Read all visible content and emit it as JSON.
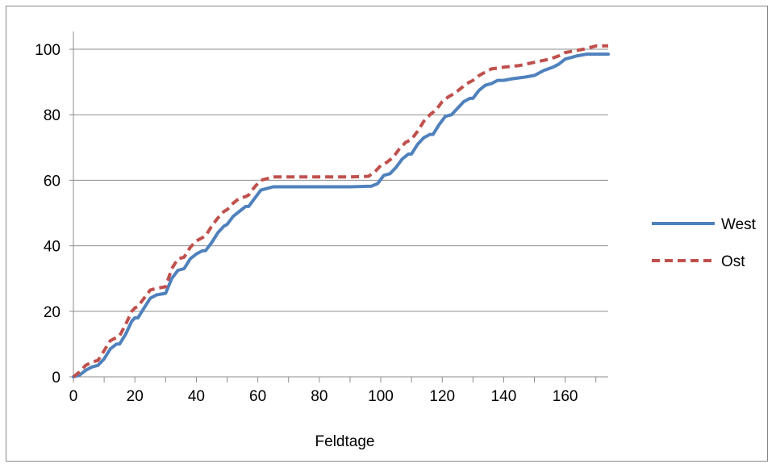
{
  "chart_data": {
    "type": "line",
    "title": "",
    "xlabel": "Feldtage",
    "ylabel": "",
    "xlim": [
      0,
      174
    ],
    "ylim": [
      0,
      100
    ],
    "xticks": [
      0,
      20,
      40,
      60,
      80,
      100,
      120,
      140,
      160
    ],
    "yticks": [
      0,
      20,
      40,
      60,
      80,
      100
    ],
    "grid": "horizontal",
    "legend_position": "right",
    "series": [
      {
        "name": "West",
        "color": "#4f81bd",
        "style": "solid",
        "points": [
          [
            0,
            0
          ],
          [
            2,
            0.5
          ],
          [
            4,
            2
          ],
          [
            6,
            3
          ],
          [
            8,
            3.5
          ],
          [
            10,
            5.5
          ],
          [
            12,
            8.5
          ],
          [
            14,
            10
          ],
          [
            15,
            10
          ],
          [
            17,
            13
          ],
          [
            19,
            17
          ],
          [
            20,
            18
          ],
          [
            21,
            18
          ],
          [
            23,
            21
          ],
          [
            25,
            24
          ],
          [
            27,
            25
          ],
          [
            30,
            25.5
          ],
          [
            32,
            30
          ],
          [
            34,
            32.5
          ],
          [
            36,
            33
          ],
          [
            38,
            36
          ],
          [
            40,
            37.5
          ],
          [
            42,
            38.5
          ],
          [
            43,
            38.5
          ],
          [
            45,
            41
          ],
          [
            47,
            44
          ],
          [
            49,
            46
          ],
          [
            50,
            46.5
          ],
          [
            52,
            49
          ],
          [
            54,
            50.5
          ],
          [
            56,
            52
          ],
          [
            57,
            52
          ],
          [
            59,
            54.5
          ],
          [
            61,
            57
          ],
          [
            63,
            57.5
          ],
          [
            65,
            58
          ],
          [
            70,
            58
          ],
          [
            80,
            58
          ],
          [
            90,
            58
          ],
          [
            97,
            58.2
          ],
          [
            99,
            59
          ],
          [
            101,
            61.5
          ],
          [
            103,
            62
          ],
          [
            105,
            64
          ],
          [
            107,
            66.5
          ],
          [
            109,
            68
          ],
          [
            110,
            68
          ],
          [
            112,
            71
          ],
          [
            114,
            73
          ],
          [
            116,
            74
          ],
          [
            117,
            74
          ],
          [
            119,
            77
          ],
          [
            121,
            79.5
          ],
          [
            123,
            80
          ],
          [
            125,
            82
          ],
          [
            127,
            84
          ],
          [
            129,
            85
          ],
          [
            130,
            85
          ],
          [
            132,
            87.5
          ],
          [
            134,
            89
          ],
          [
            136,
            89.5
          ],
          [
            138,
            90.5
          ],
          [
            140,
            90.5
          ],
          [
            143,
            91
          ],
          [
            147,
            91.5
          ],
          [
            150,
            92
          ],
          [
            153,
            93.5
          ],
          [
            156,
            94.5
          ],
          [
            158,
            95.5
          ],
          [
            160,
            97
          ],
          [
            162,
            97.5
          ],
          [
            164,
            98
          ],
          [
            167,
            98.5
          ],
          [
            170,
            98.5
          ],
          [
            174,
            98.5
          ]
        ]
      },
      {
        "name": "Ost",
        "color": "#c0504d",
        "style": "dashed",
        "points": [
          [
            0,
            0
          ],
          [
            2,
            1.5
          ],
          [
            4,
            3.5
          ],
          [
            6,
            4.5
          ],
          [
            8,
            5
          ],
          [
            10,
            8
          ],
          [
            12,
            11
          ],
          [
            14,
            12
          ],
          [
            15,
            12.5
          ],
          [
            17,
            16
          ],
          [
            19,
            20
          ],
          [
            20,
            21
          ],
          [
            21,
            21.5
          ],
          [
            23,
            24
          ],
          [
            25,
            26.5
          ],
          [
            27,
            27
          ],
          [
            30,
            27.5
          ],
          [
            32,
            33
          ],
          [
            34,
            36
          ],
          [
            36,
            36.5
          ],
          [
            38,
            39.5
          ],
          [
            40,
            41.5
          ],
          [
            42,
            42.5
          ],
          [
            43,
            43
          ],
          [
            45,
            46
          ],
          [
            47,
            48.5
          ],
          [
            49,
            50.5
          ],
          [
            50,
            51
          ],
          [
            52,
            53
          ],
          [
            54,
            54.5
          ],
          [
            56,
            55
          ],
          [
            57,
            55.5
          ],
          [
            59,
            58
          ],
          [
            61,
            60
          ],
          [
            63,
            60.5
          ],
          [
            65,
            61
          ],
          [
            70,
            61
          ],
          [
            80,
            61
          ],
          [
            90,
            61
          ],
          [
            96,
            61.2
          ],
          [
            98,
            62.5
          ],
          [
            100,
            64.5
          ],
          [
            102,
            65.5
          ],
          [
            104,
            67
          ],
          [
            106,
            69.5
          ],
          [
            108,
            71.5
          ],
          [
            110,
            72.5
          ],
          [
            112,
            75
          ],
          [
            114,
            78
          ],
          [
            116,
            80
          ],
          [
            118,
            81.5
          ],
          [
            120,
            84
          ],
          [
            122,
            85.5
          ],
          [
            124,
            86.5
          ],
          [
            126,
            88
          ],
          [
            128,
            89.5
          ],
          [
            130,
            90.5
          ],
          [
            132,
            92
          ],
          [
            134,
            93
          ],
          [
            136,
            94
          ],
          [
            140,
            94.5
          ],
          [
            145,
            95
          ],
          [
            150,
            96
          ],
          [
            155,
            97
          ],
          [
            158,
            98
          ],
          [
            160,
            99
          ],
          [
            163,
            99.5
          ],
          [
            166,
            100
          ],
          [
            170,
            101
          ],
          [
            174,
            101
          ]
        ]
      }
    ]
  }
}
